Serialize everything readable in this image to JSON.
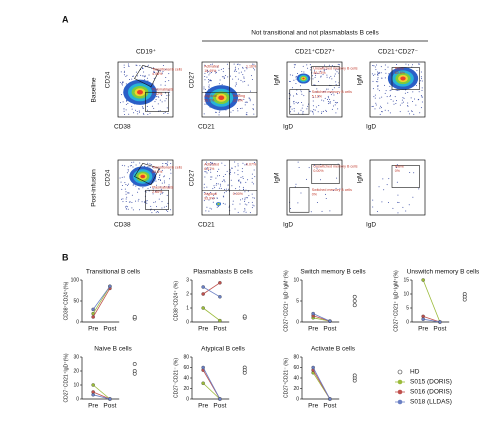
{
  "panel_a": {
    "label": "A",
    "bracket_title": "Not transitional and not plasmablasts B cells",
    "columns": [
      "CD19⁺",
      "CD21⁺CD27⁺",
      "CD21⁺CD27⁻"
    ],
    "rows": [
      "Baseline",
      "Post-infusion"
    ],
    "plots": [
      {
        "x_label": "CD38",
        "y_label": "CD24",
        "gates": [
          {
            "name": "Transitional B cells",
            "pct": "4.08%"
          },
          {
            "name": "Plasmablasts",
            "pct": "7.12%"
          }
        ]
      },
      {
        "x_label": "CD21",
        "y_label": "CD27",
        "gates": [
          {
            "name": "Activated",
            "pct": "10.49%"
          },
          {
            "pct": "1.16%"
          },
          {
            "name": "Atypical",
            "pct": "55.6%"
          },
          {
            "name": "Resting",
            "pct": "32.8%"
          }
        ]
      },
      {
        "x_label": "IgD",
        "y_label": "IgM",
        "gates": [
          {
            "name": "Unswitched memory B cells",
            "pct": "46.23%"
          },
          {
            "name": "Switched memory B cells",
            "pct": "5.12%"
          }
        ]
      },
      {
        "x_label": "IgD",
        "y_label": "IgM",
        "gates": [
          {
            "name": "Naive",
            "pct": "80.8%"
          }
        ]
      },
      {
        "x_label": "CD38",
        "y_label": "CD24",
        "gates": [
          {
            "name": "Transitional B cells",
            "pct": "80.3%"
          },
          {
            "name": "Plasmablasts",
            "pct": "2.86%"
          }
        ]
      },
      {
        "x_label": "CD21",
        "y_label": "CD27",
        "gates": [
          {
            "name": "Activated",
            "pct": "6.07%"
          },
          {
            "pct": "0.07%"
          },
          {
            "name": "Atypical",
            "pct": "93.9%"
          },
          {
            "pct": "0.00%"
          }
        ]
      },
      {
        "x_label": "IgD",
        "y_label": "IgM",
        "gates": [
          {
            "name": "Unswitched memory B cells",
            "pct": "0.00%"
          },
          {
            "name": "Switched memory B cells",
            "pct": "0%"
          }
        ]
      },
      {
        "x_label": "IgD",
        "y_label": "IgM",
        "gates": [
          {
            "name": "Naive",
            "pct": "0%"
          }
        ]
      }
    ]
  },
  "panel_b_label": "B",
  "legend": [
    {
      "name": "HD",
      "color": "#333333"
    },
    {
      "name": "S015 (DORIS)",
      "color": "#9bbb3a"
    },
    {
      "name": "S016 (DORIS)",
      "color": "#c0504d"
    },
    {
      "name": "S018 (LLDAS)",
      "color": "#6a7fc4"
    }
  ],
  "chart_data": [
    {
      "type": "line",
      "title": "Transitional B cells",
      "y_label": "CD38⁺CD24⁺(%)",
      "categories": [
        "Pre",
        "Post",
        null
      ],
      "ylim": [
        0,
        100
      ],
      "yticks": [
        0,
        50,
        100
      ],
      "series": [
        {
          "values": [
            20,
            85,
            null
          ]
        },
        {
          "values": [
            12,
            80,
            null
          ]
        },
        {
          "values": [
            30,
            85,
            null
          ]
        }
      ],
      "hd": [
        10,
        8,
        12
      ]
    },
    {
      "type": "line",
      "title": "Plasmablasts B cells",
      "y_label": "CD38⁺CD24⁺ (%)",
      "categories": [
        "Pre",
        "Post",
        null
      ],
      "ylim": [
        0,
        3
      ],
      "yticks": [
        0,
        1,
        2,
        3
      ],
      "series": [
        {
          "values": [
            1,
            0.1,
            null
          ]
        },
        {
          "values": [
            2,
            2.8,
            null
          ]
        },
        {
          "values": [
            2.5,
            1.8,
            null
          ]
        }
      ],
      "hd": [
        0.3,
        0.4
      ]
    },
    {
      "type": "line",
      "title": "Switch memory B cells",
      "y_label": "CD27⁺CD21⁺ IgD⁻IgM⁻(%)",
      "categories": [
        "Pre",
        "Post",
        null
      ],
      "ylim": [
        0,
        10
      ],
      "yticks": [
        0,
        5,
        10
      ],
      "series": [
        {
          "values": [
            1,
            0.2,
            null
          ]
        },
        {
          "values": [
            1.5,
            0.2,
            null
          ]
        },
        {
          "values": [
            2,
            0.2,
            null
          ]
        }
      ],
      "hd": [
        4,
        5,
        6
      ]
    },
    {
      "type": "line",
      "title": "Unswitch memory B cells",
      "y_label": "CD27⁺CD21⁺ IgD⁺IgM⁺(%)",
      "categories": [
        "Pre",
        "Post",
        null
      ],
      "ylim": [
        0,
        15
      ],
      "yticks": [
        0,
        5,
        10,
        15
      ],
      "series": [
        {
          "values": [
            15,
            0,
            null
          ]
        },
        {
          "values": [
            2,
            0,
            null
          ]
        },
        {
          "values": [
            1,
            0,
            null
          ]
        }
      ],
      "hd": [
        10,
        9,
        8
      ]
    },
    {
      "type": "line",
      "title": "Naive B cells",
      "y_label": "CD27⁻CD21⁺IgD⁺(%)",
      "categories": [
        "Pre",
        "Post",
        null
      ],
      "ylim": [
        0,
        30
      ],
      "yticks": [
        0,
        10,
        20,
        30
      ],
      "series": [
        {
          "values": [
            10,
            0,
            null
          ]
        },
        {
          "values": [
            5,
            0,
            null
          ]
        },
        {
          "values": [
            3,
            0,
            null
          ]
        }
      ],
      "hd": [
        25,
        20,
        18
      ]
    },
    {
      "type": "line",
      "title": "Atypical B cells",
      "y_label": "CD27⁻CD21⁻ (%)",
      "categories": [
        "Pre",
        "Post",
        null
      ],
      "ylim": [
        0,
        80
      ],
      "yticks": [
        0,
        20,
        40,
        60,
        80
      ],
      "series": [
        {
          "values": [
            30,
            0,
            null
          ]
        },
        {
          "values": [
            55,
            0,
            null
          ]
        },
        {
          "values": [
            60,
            0,
            null
          ]
        }
      ],
      "hd": [
        60,
        55,
        50
      ]
    },
    {
      "type": "line",
      "title": "Activate B cells",
      "y_label": "CD27⁺CD21⁻ (%)",
      "categories": [
        "Pre",
        "Post",
        null
      ],
      "ylim": [
        0,
        80
      ],
      "yticks": [
        0,
        20,
        40,
        60,
        80
      ],
      "series": [
        {
          "values": [
            50,
            0,
            null
          ]
        },
        {
          "values": [
            55,
            0,
            null
          ]
        },
        {
          "values": [
            60,
            0,
            null
          ]
        }
      ],
      "hd": [
        40,
        45,
        35
      ]
    }
  ]
}
